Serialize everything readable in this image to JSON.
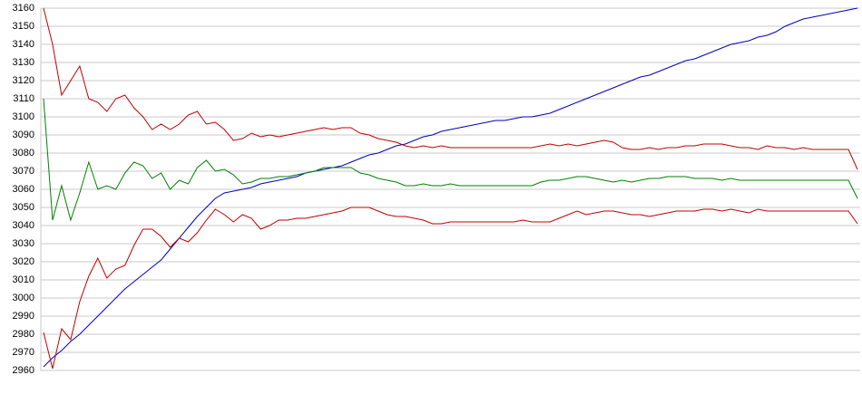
{
  "chart_data": {
    "type": "line",
    "grid": true,
    "ylim": [
      2960,
      3160
    ],
    "yticks": [
      2960,
      2970,
      2980,
      2990,
      3000,
      3010,
      3020,
      3030,
      3040,
      3050,
      3060,
      3070,
      3080,
      3090,
      3100,
      3110,
      3120,
      3130,
      3140,
      3150,
      3160
    ],
    "series": [
      {
        "color": "#0000c0",
        "values": [
          2962,
          2967,
          2971,
          2976,
          2980,
          2985,
          2990,
          2995,
          3000,
          3005,
          3009,
          3013,
          3017,
          3021,
          3027,
          3033,
          3039,
          3045,
          3050,
          3055,
          3058,
          3059,
          3060,
          3061,
          3063,
          3064,
          3065,
          3066,
          3067,
          3069,
          3070,
          3071,
          3072,
          3073,
          3075,
          3077,
          3079,
          3080,
          3082,
          3084,
          3085,
          3087,
          3089,
          3090,
          3092,
          3093,
          3094,
          3095,
          3096,
          3097,
          3098,
          3098,
          3099,
          3100,
          3100,
          3101,
          3102,
          3104,
          3106,
          3108,
          3110,
          3112,
          3114,
          3116,
          3118,
          3120,
          3122,
          3123,
          3125,
          3127,
          3129,
          3131,
          3132,
          3134,
          3136,
          3138,
          3140,
          3141,
          3142,
          3144,
          3145,
          3147,
          3150,
          3152,
          3154,
          3155,
          3156,
          3157,
          3158,
          3159,
          3160
        ]
      },
      {
        "color": "#c00000",
        "values": [
          3160,
          3140,
          3112,
          3120,
          3128,
          3110,
          3108,
          3103,
          3110,
          3112,
          3105,
          3100,
          3093,
          3096,
          3093,
          3096,
          3101,
          3103,
          3096,
          3097,
          3093,
          3087,
          3088,
          3091,
          3089,
          3090,
          3089,
          3090,
          3091,
          3092,
          3093,
          3094,
          3093,
          3094,
          3094,
          3091,
          3090,
          3088,
          3087,
          3086,
          3084,
          3083,
          3084,
          3083,
          3084,
          3083,
          3083,
          3083,
          3083,
          3083,
          3083,
          3083,
          3083,
          3083,
          3083,
          3084,
          3085,
          3084,
          3085,
          3084,
          3085,
          3086,
          3087,
          3086,
          3083,
          3082,
          3082,
          3083,
          3082,
          3083,
          3083,
          3084,
          3084,
          3085,
          3085,
          3085,
          3084,
          3083,
          3083,
          3082,
          3084,
          3083,
          3083,
          3082,
          3083,
          3082,
          3082,
          3082,
          3082,
          3082,
          3071
        ]
      },
      {
        "color": "#008000",
        "values": [
          3110,
          3043,
          3062,
          3043,
          3058,
          3075,
          3060,
          3062,
          3060,
          3069,
          3075,
          3073,
          3066,
          3069,
          3060,
          3065,
          3063,
          3072,
          3076,
          3070,
          3071,
          3068,
          3063,
          3064,
          3066,
          3066,
          3067,
          3067,
          3068,
          3069,
          3070,
          3072,
          3072,
          3072,
          3072,
          3069,
          3068,
          3066,
          3065,
          3064,
          3062,
          3062,
          3063,
          3062,
          3062,
          3063,
          3062,
          3062,
          3062,
          3062,
          3062,
          3062,
          3062,
          3062,
          3062,
          3064,
          3065,
          3065,
          3066,
          3067,
          3067,
          3066,
          3065,
          3064,
          3065,
          3064,
          3065,
          3066,
          3066,
          3067,
          3067,
          3067,
          3066,
          3066,
          3066,
          3065,
          3066,
          3065,
          3065,
          3065,
          3065,
          3065,
          3065,
          3065,
          3065,
          3065,
          3065,
          3065,
          3065,
          3065,
          3055
        ]
      },
      {
        "color": "#c00000",
        "values": [
          2981,
          2961,
          2983,
          2977,
          2998,
          3012,
          3022,
          3011,
          3016,
          3018,
          3029,
          3038,
          3038,
          3034,
          3028,
          3033,
          3031,
          3036,
          3043,
          3049,
          3046,
          3042,
          3046,
          3044,
          3038,
          3040,
          3043,
          3043,
          3044,
          3044,
          3045,
          3046,
          3047,
          3048,
          3050,
          3050,
          3050,
          3048,
          3046,
          3045,
          3045,
          3044,
          3043,
          3041,
          3041,
          3042,
          3042,
          3042,
          3042,
          3042,
          3042,
          3042,
          3042,
          3043,
          3042,
          3042,
          3042,
          3044,
          3046,
          3048,
          3046,
          3047,
          3048,
          3048,
          3047,
          3046,
          3046,
          3045,
          3046,
          3047,
          3048,
          3048,
          3048,
          3049,
          3049,
          3048,
          3049,
          3048,
          3047,
          3049,
          3048,
          3048,
          3048,
          3048,
          3048,
          3048,
          3048,
          3048,
          3048,
          3048,
          3041
        ]
      }
    ]
  }
}
